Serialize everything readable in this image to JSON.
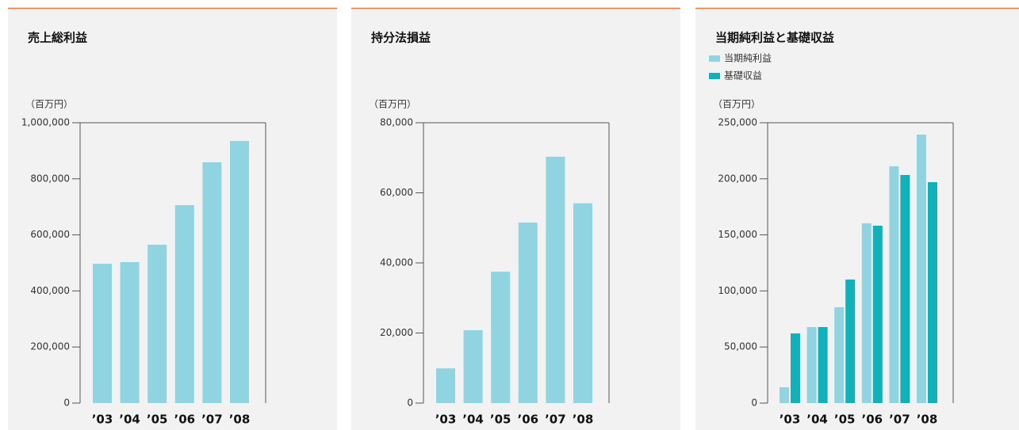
{
  "chart_data": [
    {
      "type": "bar",
      "title": "売上総利益",
      "y_label": "（百万円）",
      "categories": [
        "’03",
        "’04",
        "’05",
        "’06",
        "’07",
        "’08"
      ],
      "values": [
        497000,
        503000,
        565000,
        706000,
        859000,
        935000
      ],
      "color": "#8fd4e0",
      "ylim": [
        0,
        1000000
      ],
      "yticks": [
        0,
        {
          "value": 200000,
          "label": "200,000"
        },
        {
          "value": 400000,
          "label": "400,000"
        },
        {
          "value": 600000,
          "label": "600,000"
        },
        {
          "value": 800000,
          "label": "800,000"
        },
        {
          "value": 1000000,
          "label": "1,000,000"
        }
      ]
    },
    {
      "type": "bar",
      "title": "持分法損益",
      "y_label": "（百万円）",
      "categories": [
        "’03",
        "’04",
        "’05",
        "’06",
        "’07",
        "’08"
      ],
      "values": [
        9900,
        20800,
        37500,
        51500,
        70300,
        57000
      ],
      "color": "#8fd4e0",
      "ylim": [
        0,
        80000
      ],
      "yticks": [
        0,
        {
          "value": 20000,
          "label": "20,000"
        },
        {
          "value": 40000,
          "label": "40,000"
        },
        {
          "value": 60000,
          "label": "60,000"
        },
        {
          "value": 80000,
          "label": "80,000"
        }
      ]
    },
    {
      "type": "grouped_bar",
      "title": "当期純利益と基礎収益",
      "y_label": "（百万円）",
      "categories": [
        "’03",
        "’04",
        "’05",
        "’06",
        "’07",
        "’08"
      ],
      "series": [
        {
          "name": "当期純利益",
          "color": "#8fd4e0",
          "values": [
            14100,
            67800,
            85500,
            160300,
            211200,
            239400
          ]
        },
        {
          "name": "基礎収益",
          "color": "#12b0b8",
          "values": [
            62100,
            67800,
            110200,
            158200,
            203400,
            197000
          ]
        }
      ],
      "ylim": [
        0,
        250000
      ],
      "yticks": [
        0,
        {
          "value": 50000,
          "label": "50,000"
        },
        {
          "value": 100000,
          "label": "100,000"
        },
        {
          "value": 150000,
          "label": "150,000"
        },
        {
          "value": 200000,
          "label": "200,000"
        },
        {
          "value": 250000,
          "label": "250,000"
        }
      ]
    }
  ]
}
